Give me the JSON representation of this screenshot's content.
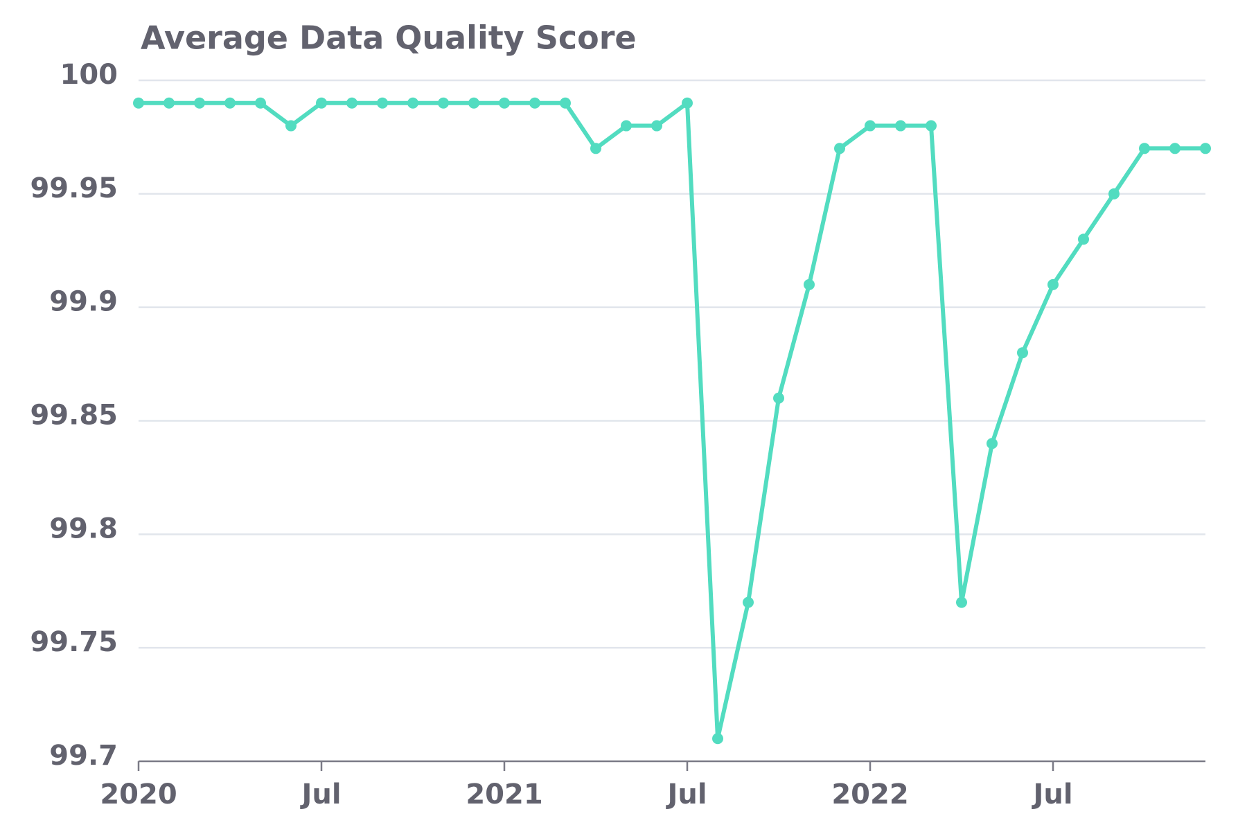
{
  "chart_data": {
    "type": "line",
    "title": "Average Data Quality Score",
    "x": [
      "2020-01",
      "2020-02",
      "2020-03",
      "2020-04",
      "2020-05",
      "2020-06",
      "2020-07",
      "2020-08",
      "2020-09",
      "2020-10",
      "2020-11",
      "2020-12",
      "2021-01",
      "2021-02",
      "2021-03",
      "2021-04",
      "2021-05",
      "2021-06",
      "2021-07",
      "2021-08",
      "2021-09",
      "2021-10",
      "2021-11",
      "2021-12",
      "2022-01",
      "2022-02",
      "2022-03",
      "2022-04",
      "2022-05",
      "2022-06",
      "2022-07",
      "2022-08",
      "2022-09",
      "2022-10",
      "2022-11",
      "2022-12"
    ],
    "series": [
      {
        "name": "Average Data Quality Score",
        "color": "#52dcc0",
        "values": [
          99.99,
          99.99,
          99.99,
          99.99,
          99.99,
          99.98,
          99.99,
          99.99,
          99.99,
          99.99,
          99.99,
          99.99,
          99.99,
          99.99,
          99.99,
          99.97,
          99.98,
          99.98,
          99.99,
          99.71,
          99.77,
          99.86,
          99.91,
          99.97,
          99.98,
          99.98,
          99.98,
          99.77,
          99.84,
          99.88,
          99.91,
          99.93,
          99.95,
          99.97,
          99.97,
          99.97
        ]
      }
    ],
    "xlim": [
      "2020-01",
      "2022-12"
    ],
    "xticks": [
      {
        "value": "2020-01",
        "label": "2020"
      },
      {
        "value": "2020-07",
        "label": "Jul"
      },
      {
        "value": "2021-01",
        "label": "2021"
      },
      {
        "value": "2021-07",
        "label": "Jul"
      },
      {
        "value": "2022-01",
        "label": "2022"
      },
      {
        "value": "2022-07",
        "label": "Jul"
      }
    ],
    "ylim": [
      99.7,
      100
    ],
    "yticks": [
      99.7,
      99.75,
      99.8,
      99.85,
      99.9,
      99.95,
      100
    ],
    "grid": true
  }
}
